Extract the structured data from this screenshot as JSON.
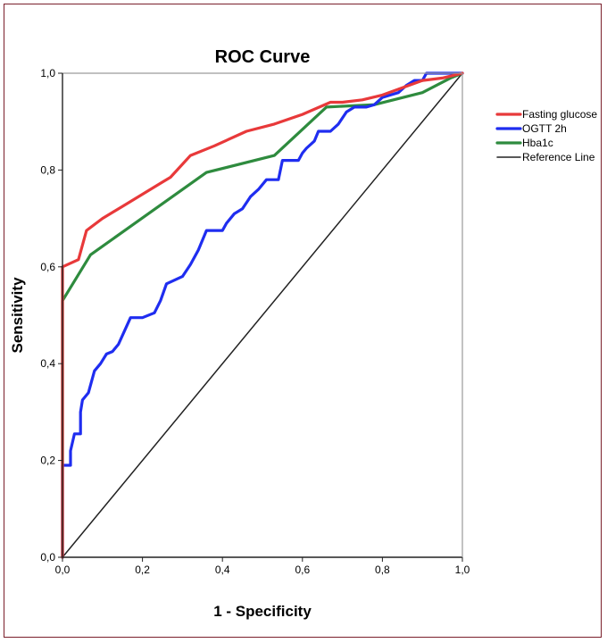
{
  "chart_data": {
    "type": "line",
    "title": "ROC Curve",
    "xlabel": "1 - Specificity",
    "ylabel": "Sensitivity",
    "xlim": [
      0,
      1
    ],
    "ylim": [
      0,
      1
    ],
    "x_ticks": [
      "0,0",
      "0,2",
      "0,4",
      "0,6",
      "0,8",
      "1,0"
    ],
    "y_ticks": [
      "0,0",
      "0,2",
      "0,4",
      "0,6",
      "0,8",
      "1,0"
    ],
    "grid": false,
    "legend_position": "right",
    "series": [
      {
        "name": "Fasting glucose",
        "color": "#e8393a",
        "points": [
          [
            0,
            0
          ],
          [
            0,
            0.6
          ],
          [
            0.04,
            0.615
          ],
          [
            0.06,
            0.675
          ],
          [
            0.1,
            0.7
          ],
          [
            0.15,
            0.725
          ],
          [
            0.2,
            0.75
          ],
          [
            0.25,
            0.775
          ],
          [
            0.27,
            0.785
          ],
          [
            0.32,
            0.83
          ],
          [
            0.38,
            0.85
          ],
          [
            0.46,
            0.88
          ],
          [
            0.53,
            0.895
          ],
          [
            0.6,
            0.915
          ],
          [
            0.67,
            0.94
          ],
          [
            0.7,
            0.94
          ],
          [
            0.75,
            0.945
          ],
          [
            0.8,
            0.955
          ],
          [
            0.85,
            0.97
          ],
          [
            0.9,
            0.985
          ],
          [
            0.95,
            0.99
          ],
          [
            1,
            1
          ]
        ]
      },
      {
        "name": "OGTT 2h",
        "color": "#1f2df0",
        "points": [
          [
            0,
            0
          ],
          [
            0,
            0.19
          ],
          [
            0.02,
            0.19
          ],
          [
            0.02,
            0.22
          ],
          [
            0.03,
            0.255
          ],
          [
            0.045,
            0.255
          ],
          [
            0.045,
            0.3
          ],
          [
            0.05,
            0.325
          ],
          [
            0.065,
            0.34
          ],
          [
            0.08,
            0.385
          ],
          [
            0.095,
            0.4
          ],
          [
            0.11,
            0.42
          ],
          [
            0.125,
            0.425
          ],
          [
            0.14,
            0.44
          ],
          [
            0.17,
            0.495
          ],
          [
            0.2,
            0.495
          ],
          [
            0.23,
            0.505
          ],
          [
            0.245,
            0.53
          ],
          [
            0.26,
            0.565
          ],
          [
            0.3,
            0.58
          ],
          [
            0.32,
            0.605
          ],
          [
            0.34,
            0.635
          ],
          [
            0.36,
            0.675
          ],
          [
            0.4,
            0.675
          ],
          [
            0.41,
            0.69
          ],
          [
            0.43,
            0.71
          ],
          [
            0.45,
            0.72
          ],
          [
            0.47,
            0.745
          ],
          [
            0.49,
            0.76
          ],
          [
            0.51,
            0.78
          ],
          [
            0.54,
            0.78
          ],
          [
            0.55,
            0.82
          ],
          [
            0.59,
            0.82
          ],
          [
            0.6,
            0.835
          ],
          [
            0.61,
            0.845
          ],
          [
            0.63,
            0.86
          ],
          [
            0.64,
            0.88
          ],
          [
            0.67,
            0.88
          ],
          [
            0.69,
            0.895
          ],
          [
            0.71,
            0.92
          ],
          [
            0.73,
            0.93
          ],
          [
            0.76,
            0.93
          ],
          [
            0.78,
            0.935
          ],
          [
            0.8,
            0.95
          ],
          [
            0.82,
            0.955
          ],
          [
            0.84,
            0.96
          ],
          [
            0.86,
            0.975
          ],
          [
            0.88,
            0.985
          ],
          [
            0.9,
            0.985
          ],
          [
            0.91,
            1
          ],
          [
            1,
            1
          ]
        ]
      },
      {
        "name": "Hba1c",
        "color": "#2e8b3e",
        "points": [
          [
            0,
            0
          ],
          [
            0,
            0.53
          ],
          [
            0.07,
            0.625
          ],
          [
            0.36,
            0.795
          ],
          [
            0.53,
            0.83
          ],
          [
            0.66,
            0.93
          ],
          [
            0.78,
            0.935
          ],
          [
            0.9,
            0.96
          ],
          [
            0.97,
            0.99
          ],
          [
            1,
            1
          ]
        ]
      },
      {
        "name": "Reference Line",
        "color": "#222222",
        "points": [
          [
            0,
            0
          ],
          [
            1,
            1
          ]
        ]
      }
    ]
  }
}
